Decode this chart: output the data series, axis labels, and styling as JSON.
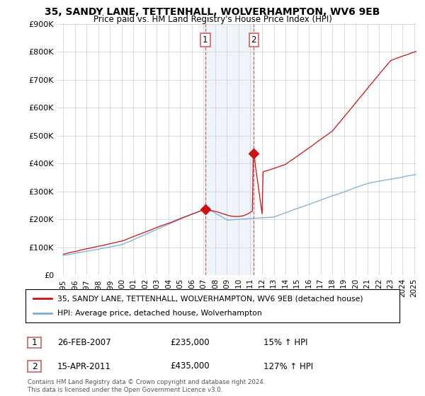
{
  "title_line1": "35, SANDY LANE, TETTENHALL, WOLVERHAMPTON, WV6 9EB",
  "title_line2": "Price paid vs. HM Land Registry's House Price Index (HPI)",
  "hpi_color": "#7aadd4",
  "sale_color": "#cc1111",
  "shade_color": "#cfe0f0",
  "vline_color": "#cc6666",
  "background_color": "#ffffff",
  "grid_color": "#cccccc",
  "ylim": [
    0,
    900000
  ],
  "yticks": [
    0,
    100000,
    200000,
    300000,
    400000,
    500000,
    600000,
    700000,
    800000,
    900000
  ],
  "ytick_labels": [
    "£0",
    "£100K",
    "£200K",
    "£300K",
    "£400K",
    "£500K",
    "£600K",
    "£700K",
    "£800K",
    "£900K"
  ],
  "legend_sale_label": "35, SANDY LANE, TETTENHALL, WOLVERHAMPTON, WV6 9EB (detached house)",
  "legend_hpi_label": "HPI: Average price, detached house, Wolverhampton",
  "table_rows": [
    {
      "num": "1",
      "date": "26-FEB-2007",
      "price": "£235,000",
      "hpi": "15% ↑ HPI"
    },
    {
      "num": "2",
      "date": "15-APR-2011",
      "price": "£435,000",
      "hpi": "127% ↑ HPI"
    }
  ],
  "footer": "Contains HM Land Registry data © Crown copyright and database right 2024.\nThis data is licensed under the Open Government Licence v3.0.",
  "sale1_x": 2007.15,
  "sale1_y": 235000,
  "sale2_x": 2011.29,
  "sale2_y": 435000,
  "shade_x1": 2007.15,
  "shade_x2": 2011.29,
  "xlim_left": 1994.5,
  "xlim_right": 2025.2
}
